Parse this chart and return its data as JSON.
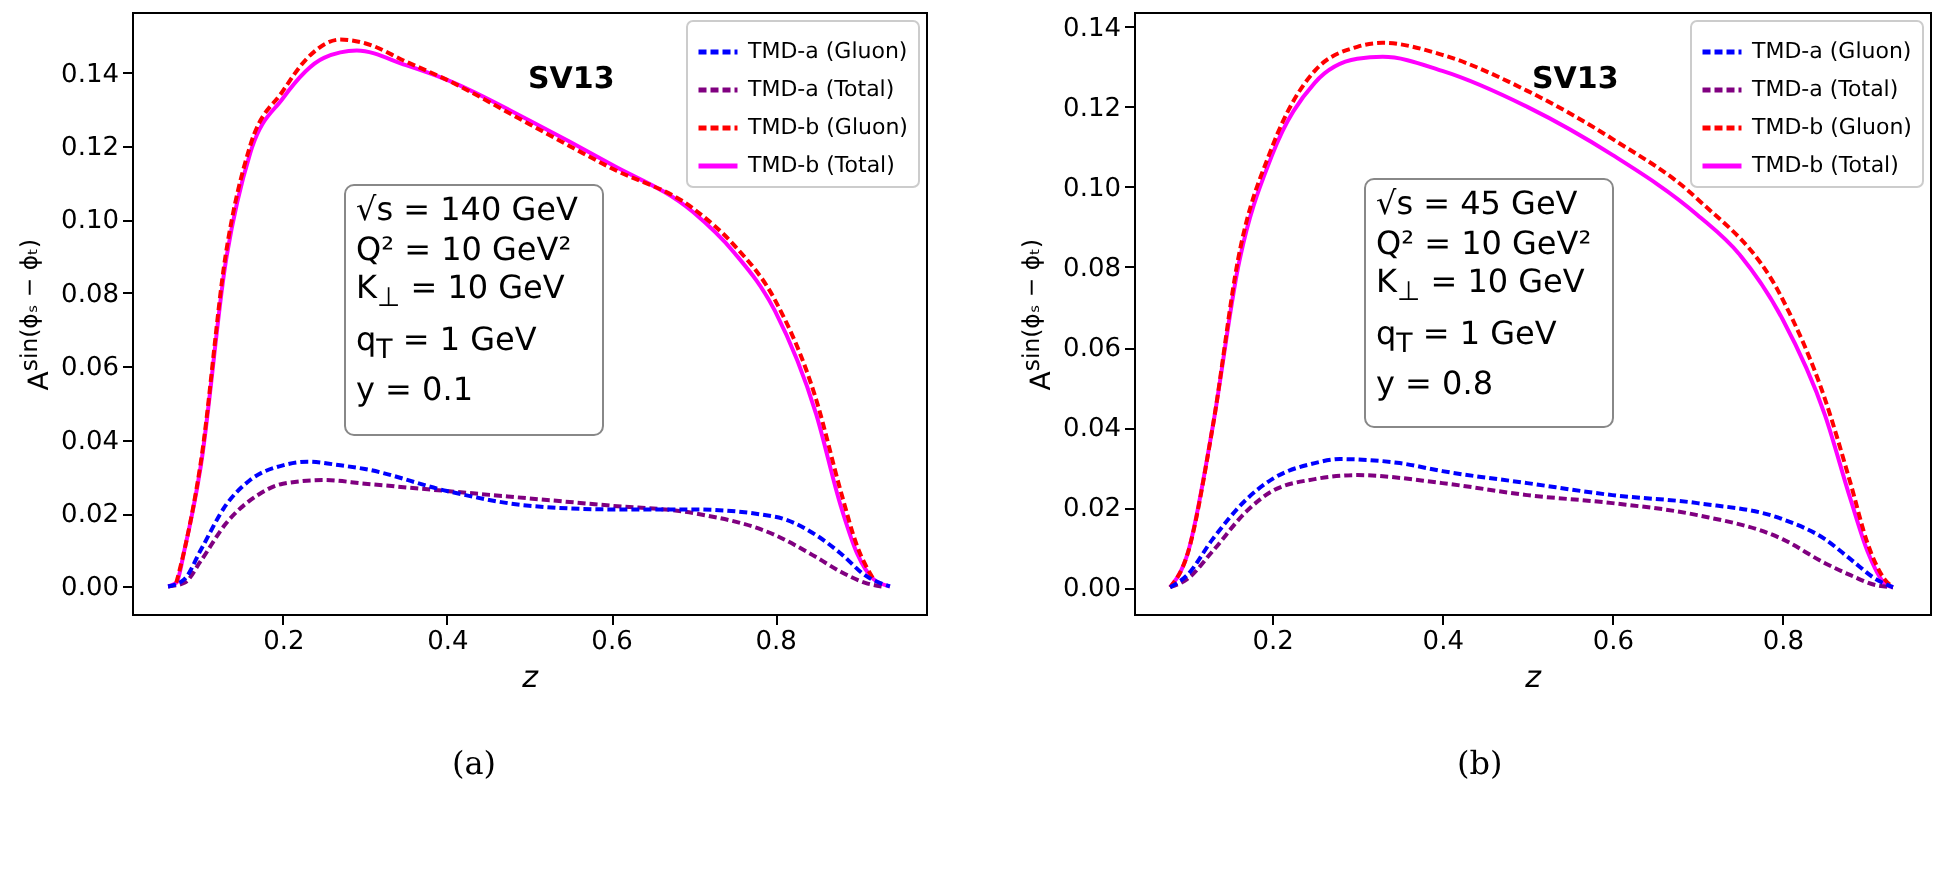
{
  "chart_data": [
    {
      "type": "line",
      "xlabel": "z",
      "ylabel": "A$^{sin(ϕₛ − ϕₜ)}$",
      "legend": "top right",
      "grid": false,
      "xlim": [
        0.016,
        0.984
      ],
      "ylim": [
        -0.0075,
        0.1565
      ],
      "xticks": [
        0.2,
        0.4,
        0.6,
        0.8
      ],
      "yticks": [
        {
          "value": 0,
          "label": "0.00"
        },
        {
          "value": 0.02,
          "label": "0.02"
        },
        {
          "value": 0.04,
          "label": "0.04"
        },
        {
          "value": 0.06,
          "label": "0.06"
        },
        {
          "value": 0.08,
          "label": "0.08"
        },
        {
          "value": 0.1,
          "label": "0.10"
        },
        {
          "value": 0.12,
          "label": "0.12"
        },
        {
          "value": 0.14,
          "label": "0.14"
        }
      ],
      "annotations": [
        "SV13",
        "√s = 140 GeV",
        "Q² = 10 GeV²",
        "K$_{⊥}$ = 10 GeV",
        "q$_{T}$ = 1 GeV",
        "y = 0.1",
        "(a)"
      ],
      "series": [
        {
          "name": "TMD-a (Gluon)",
          "color": "#0000ff",
          "line_style": "dashed",
          "x": [
            0.06,
            0.08,
            0.1,
            0.13,
            0.16,
            0.2,
            0.23,
            0.27,
            0.3,
            0.4,
            0.5,
            0.6,
            0.7,
            0.8,
            0.85,
            0.88,
            0.91,
            0.94
          ],
          "values": [
            0,
            0.002,
            0.01,
            0.022,
            0.029,
            0.033,
            0.034,
            0.033,
            0.032,
            0.026,
            0.022,
            0.021,
            0.021,
            0.019,
            0.014,
            0.009,
            0.003,
            0
          ]
        },
        {
          "name": "TMD-a (Total)",
          "color": "#800080",
          "line_style": "dashed",
          "x": [
            0.06,
            0.08,
            0.1,
            0.13,
            0.17,
            0.2,
            0.25,
            0.3,
            0.4,
            0.5,
            0.6,
            0.7,
            0.8,
            0.85,
            0.88,
            0.91,
            0.93
          ],
          "values": [
            0,
            0.001,
            0.007,
            0.017,
            0.025,
            0.028,
            0.029,
            0.028,
            0.026,
            0.024,
            0.022,
            0.02,
            0.014,
            0.008,
            0.004,
            0.001,
            0
          ]
        },
        {
          "name": "TMD-b (Gluon)",
          "color": "#ff0000",
          "line_style": "dashed",
          "x": [
            0.07,
            0.08,
            0.1,
            0.13,
            0.16,
            0.2,
            0.23,
            0.27,
            0.3,
            0.35,
            0.4,
            0.5,
            0.6,
            0.7,
            0.75,
            0.8,
            0.85,
            0.88,
            0.9,
            0.92
          ],
          "values": [
            0.001,
            0.01,
            0.034,
            0.09,
            0.12,
            0.135,
            0.144,
            0.149,
            0.148,
            0.143,
            0.138,
            0.126,
            0.114,
            0.103,
            0.093,
            0.078,
            0.051,
            0.026,
            0.011,
            0.002
          ]
        },
        {
          "name": "TMD-b (Total)",
          "color": "#ff00ff",
          "line_style": "solid",
          "x": [
            0.06,
            0.07,
            0.08,
            0.1,
            0.13,
            0.16,
            0.2,
            0.25,
            0.29,
            0.35,
            0.4,
            0.5,
            0.6,
            0.7,
            0.75,
            0.8,
            0.85,
            0.88,
            0.9,
            0.92,
            0.94
          ],
          "values": [
            0,
            0.001,
            0.01,
            0.033,
            0.088,
            0.118,
            0.133,
            0.144,
            0.146,
            0.142,
            0.138,
            0.127,
            0.115,
            0.102,
            0.091,
            0.075,
            0.047,
            0.022,
            0.009,
            0.002,
            0
          ]
        }
      ]
    },
    {
      "type": "line",
      "xlabel": "z",
      "ylabel": "A$^{sin(ϕₛ − ϕₜ)}$",
      "legend": "top right",
      "grid": false,
      "xlim": [
        0.0375,
        0.9735
      ],
      "ylim": [
        -0.0067,
        0.1437
      ],
      "xticks": [
        0.2,
        0.4,
        0.6,
        0.8
      ],
      "yticks": [
        {
          "value": 0,
          "label": "0.00"
        },
        {
          "value": 0.02,
          "label": "0.02"
        },
        {
          "value": 0.04,
          "label": "0.04"
        },
        {
          "value": 0.06,
          "label": "0.06"
        },
        {
          "value": 0.08,
          "label": "0.08"
        },
        {
          "value": 0.1,
          "label": "0.10"
        },
        {
          "value": 0.12,
          "label": "0.12"
        },
        {
          "value": 0.14,
          "label": "0.14"
        }
      ],
      "annotations": [
        "SV13",
        "√s = 45 GeV",
        "Q² = 10 GeV²",
        "K$_{⊥}$ = 10 GeV",
        "q$_{T}$ = 1 GeV",
        "y = 0.8",
        "(b)"
      ],
      "series": [
        {
          "name": "TMD-a (Gluon)",
          "color": "#0000ff",
          "line_style": "dashed",
          "x": [
            0.08,
            0.1,
            0.13,
            0.17,
            0.2,
            0.25,
            0.28,
            0.35,
            0.4,
            0.5,
            0.6,
            0.7,
            0.8,
            0.85,
            0.88,
            0.91,
            0.93
          ],
          "values": [
            0,
            0.003,
            0.012,
            0.022,
            0.027,
            0.031,
            0.032,
            0.031,
            0.029,
            0.026,
            0.023,
            0.021,
            0.017,
            0.012,
            0.007,
            0.002,
            0
          ]
        },
        {
          "name": "TMD-a (Total)",
          "color": "#800080",
          "line_style": "dashed",
          "x": [
            0.08,
            0.1,
            0.13,
            0.17,
            0.2,
            0.25,
            0.3,
            0.4,
            0.5,
            0.6,
            0.7,
            0.8,
            0.85,
            0.88,
            0.91,
            0.93
          ],
          "values": [
            0,
            0.002,
            0.009,
            0.019,
            0.024,
            0.027,
            0.028,
            0.026,
            0.023,
            0.021,
            0.018,
            0.012,
            0.006,
            0.003,
            0.0005,
            0
          ]
        },
        {
          "name": "TMD-b (Gluon)",
          "color": "#ff0000",
          "line_style": "dashed",
          "x": [
            0.08,
            0.1,
            0.13,
            0.16,
            0.2,
            0.25,
            0.3,
            0.33,
            0.4,
            0.5,
            0.6,
            0.7,
            0.8,
            0.85,
            0.88,
            0.9,
            0.92,
            0.93
          ],
          "values": [
            0,
            0.008,
            0.04,
            0.082,
            0.11,
            0.129,
            0.135,
            0.136,
            0.133,
            0.124,
            0.112,
            0.097,
            0.072,
            0.047,
            0.026,
            0.011,
            0.002,
            0
          ]
        },
        {
          "name": "TMD-b (Total)",
          "color": "#ff00ff",
          "line_style": "solid",
          "x": [
            0.08,
            0.1,
            0.13,
            0.16,
            0.2,
            0.25,
            0.3,
            0.33,
            0.4,
            0.5,
            0.6,
            0.7,
            0.75,
            0.8,
            0.85,
            0.88,
            0.9,
            0.92,
            0.93
          ],
          "values": [
            0,
            0.008,
            0.04,
            0.08,
            0.108,
            0.126,
            0.132,
            0.1325,
            0.129,
            0.12,
            0.108,
            0.093,
            0.083,
            0.067,
            0.043,
            0.022,
            0.009,
            0.001,
            0
          ]
        }
      ]
    }
  ]
}
